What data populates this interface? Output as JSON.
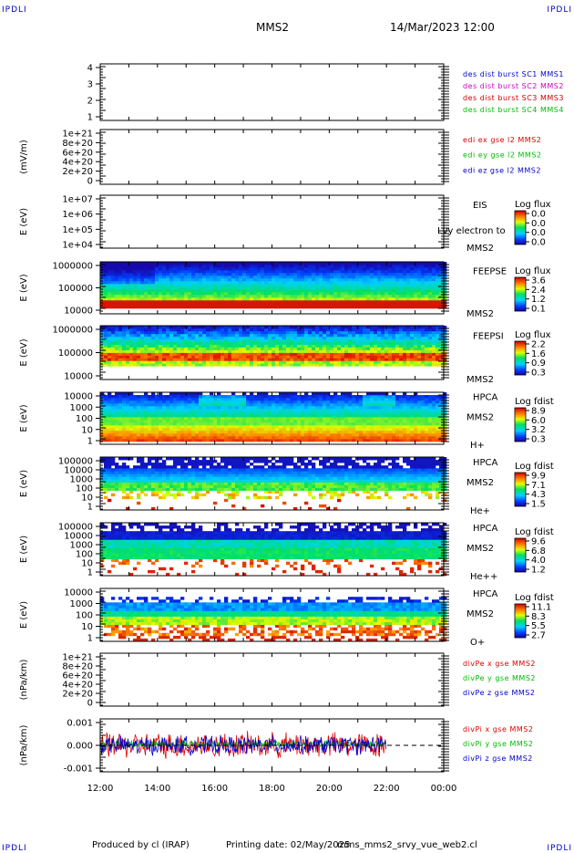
{
  "header": {
    "corner_left": "IPDLI",
    "corner_right": "IPDLI",
    "corner_bottom_left": "IPDLI",
    "corner_bottom_right": "IPDLI",
    "title": "MMS2",
    "datetime": "14/Mar/2023 12:00"
  },
  "footer": {
    "produced": "Produced by cl (IRAP)",
    "printing": "Printing date: 02/May/2025",
    "file": "mms_mms2_srvy_vue_web2.cl"
  },
  "colors": {
    "mms1": "#0000cc",
    "mms2": "#cc00cc",
    "mms3": "#cc0000",
    "mms4": "#00bb00",
    "red": "#dd0000",
    "green": "#00bb00",
    "blue": "#0000cc"
  },
  "chart_data": {
    "type": "line",
    "x_axis": {
      "range": [
        "12:00",
        "00:00"
      ],
      "tick_labels": [
        "12:00",
        "14:00",
        "16:00",
        "18:00",
        "20:00",
        "22:00",
        "00:00"
      ]
    },
    "panels": [
      {
        "type": "line",
        "ylabel": "",
        "ylim": [
          0.5,
          4.5
        ],
        "tick_labels": [
          "4",
          "3",
          "2",
          "1"
        ],
        "legend": [
          {
            "text": "des dist burst SC1 MMS1",
            "color": "#0000cc"
          },
          {
            "text": "des dist burst SC2 MMS2",
            "color": "#cc00cc"
          },
          {
            "text": "des dist burst SC3 MMS3",
            "color": "#cc0000"
          },
          {
            "text": "des dist burst SC4 MMS4",
            "color": "#00bb00"
          }
        ],
        "series": []
      },
      {
        "type": "line",
        "ylabel": "(mV/m)",
        "ylim": [
          0,
          1e+21
        ],
        "tick_labels": [
          "1e+21",
          "8e+20",
          "6e+20",
          "4e+20",
          "2e+20",
          "0"
        ],
        "dashed_zero": true,
        "legend": [
          {
            "text": "edi ex gse l2 MMS2",
            "color": "#dd0000"
          },
          {
            "text": "edi ey gse l2 MMS2",
            "color": "#00bb00"
          },
          {
            "text": "edi ez gse l2 MMS2",
            "color": "#0000cc"
          }
        ],
        "series": []
      },
      {
        "type": "heatmap",
        "ylabel": "E (eV)",
        "ylog": true,
        "ylim": [
          10000.0,
          10000000.0
        ],
        "tick_labels": [
          "1e+07",
          "1e+06",
          "1e+05",
          "1e+04"
        ],
        "instrument": [
          "EIS",
          "",
          "MMS2"
        ],
        "overlay_text": "Lvy electron to",
        "colorbar": {
          "title": "Log flux",
          "ticks": [
            "0.0",
            "0.0",
            "0.0",
            "0.0"
          ]
        },
        "empty": true
      },
      {
        "type": "heatmap",
        "ylabel": "E (eV)",
        "ylog": true,
        "ylim": [
          10000.0,
          1000000.0
        ],
        "tick_labels": [
          "1000000",
          "100000",
          "10000"
        ],
        "instrument": [
          "FEEPSE",
          "",
          "MMS2"
        ],
        "colorbar": {
          "title": "Log flux",
          "ticks": [
            "3.6",
            "2.4",
            "1.2",
            "0.1"
          ]
        },
        "data_end": "00:00",
        "profile": "feepse"
      },
      {
        "type": "heatmap",
        "ylabel": "E (eV)",
        "ylog": true,
        "ylim": [
          10000.0,
          1000000.0
        ],
        "tick_labels": [
          "1000000",
          "100000",
          "10000"
        ],
        "instrument": [
          "FEEPSI",
          "",
          "MMS2"
        ],
        "colorbar": {
          "title": "Log flux",
          "ticks": [
            "2.2",
            "1.6",
            "0.9",
            "0.3"
          ]
        },
        "data_end": "00:00",
        "profile": "feepsi"
      },
      {
        "type": "heatmap",
        "ylabel": "E (eV)",
        "ylog": true,
        "ylim": [
          1,
          40000
        ],
        "tick_labels": [
          "10000",
          "1000",
          "100",
          "10",
          "1"
        ],
        "instrument": [
          "HPCA",
          "MMS2",
          "H+"
        ],
        "colorbar": {
          "title": "Log fdist",
          "ticks": [
            "8.9",
            "6.0",
            "3.2",
            "0.3"
          ]
        },
        "data_end": "00:00",
        "profile": "hplus"
      },
      {
        "type": "heatmap",
        "ylabel": "E (eV)",
        "ylog": true,
        "ylim": [
          1,
          40000
        ],
        "tick_labels": [
          "100000",
          "10000",
          "1000",
          "100",
          "10",
          "1"
        ],
        "instrument": [
          "HPCA",
          "MMS2",
          "He+"
        ],
        "colorbar": {
          "title": "Log fdist",
          "ticks": [
            "9.9",
            "7.1",
            "4.3",
            "1.5"
          ]
        },
        "data_end": "00:00",
        "profile": "heplus"
      },
      {
        "type": "heatmap",
        "ylabel": "E (eV)",
        "ylog": true,
        "ylim": [
          1,
          40000
        ],
        "tick_labels": [
          "100000",
          "10000",
          "1000",
          "100",
          "10",
          "1"
        ],
        "instrument": [
          "HPCA",
          "MMS2",
          "He++"
        ],
        "colorbar": {
          "title": "Log fdist",
          "ticks": [
            "9.6",
            "6.8",
            "4.0",
            "1.2"
          ]
        },
        "data_end": "00:00",
        "profile": "heplusplus"
      },
      {
        "type": "heatmap",
        "ylabel": "E (eV)",
        "ylog": true,
        "ylim": [
          1,
          40000
        ],
        "tick_labels": [
          "10000",
          "1000",
          "100",
          "10",
          "1"
        ],
        "instrument": [
          "HPCA",
          "MMS2",
          "O+"
        ],
        "colorbar": {
          "title": "Log fdist",
          "ticks": [
            "11.1",
            "8.3",
            "5.5",
            "2.7"
          ]
        },
        "data_end": "00:00",
        "profile": "oplus"
      },
      {
        "type": "line",
        "ylabel": "(nPa/km)",
        "ylim": [
          0,
          1e+21
        ],
        "tick_labels": [
          "1e+21",
          "8e+20",
          "6e+20",
          "4e+20",
          "2e+20",
          "0"
        ],
        "dashed_zero": true,
        "legend": [
          {
            "text": "divPe x gse MMS2",
            "color": "#dd0000"
          },
          {
            "text": "divPe y gse MMS2",
            "color": "#00bb00"
          },
          {
            "text": "divPe z gse MMS2",
            "color": "#0000cc"
          }
        ],
        "series": []
      },
      {
        "type": "line",
        "ylabel": "(nPa/km)",
        "ylim": [
          -0.002,
          0.002
        ],
        "tick_labels": [
          "0.001",
          "0.000",
          "-0.001"
        ],
        "dashed_zero": true,
        "legend": [
          {
            "text": "divPi x gse MMS2",
            "color": "#dd0000"
          },
          {
            "text": "divPi y gse MMS2",
            "color": "#00bb00"
          },
          {
            "text": "divPi z gse MMS2",
            "color": "#0000cc"
          }
        ],
        "data_end": "22:00",
        "series": [
          {
            "name": "divPi x gse MMS2",
            "color": "#dd0000",
            "mean": 0.0,
            "spread": 0.0011
          },
          {
            "name": "divPi y gse MMS2",
            "color": "#00bb00",
            "mean": 0.0001,
            "spread": 0.0003
          },
          {
            "name": "divPi z gse MMS2",
            "color": "#0000cc",
            "mean": 0.0,
            "spread": 0.0008
          }
        ]
      }
    ]
  }
}
